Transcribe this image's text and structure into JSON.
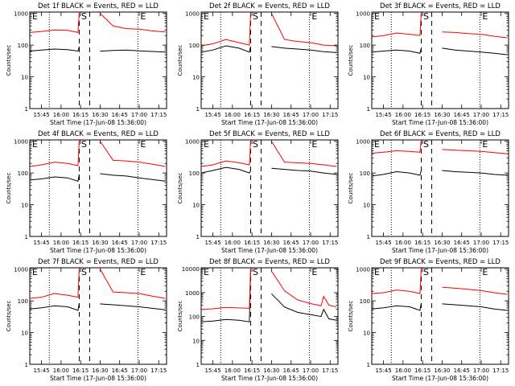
{
  "chart_data": [
    {
      "type": "line",
      "title": "Det 1f BLACK = Events, RED = LLD",
      "xlabel": "Start Time (17-Jun-08 15:36:00)",
      "ylabel": "Counts/sec",
      "x_ticks": [
        "15:45",
        "16:00",
        "16:15",
        "16:30",
        "16:45",
        "17:00",
        "17:15"
      ],
      "y_ticks": [
        "1",
        "10",
        "100",
        "1000"
      ],
      "ylim": [
        1,
        1100
      ],
      "yscale": "log",
      "markers": [
        "E",
        "S",
        "E"
      ],
      "series": [
        {
          "name": "Events",
          "color": "#000000",
          "x": [
            "15:36",
            "15:45",
            "15:55",
            "16:05",
            "16:13",
            "16:14",
            "16:22",
            "16:30",
            "16:40",
            "16:50",
            "17:00",
            "17:10",
            "17:20"
          ],
          "y": [
            65,
            70,
            75,
            72,
            65,
            90,
            null,
            64,
            68,
            70,
            66,
            63,
            60
          ]
        },
        {
          "name": "LLD",
          "color": "#ff0000",
          "x": [
            "15:36",
            "15:45",
            "15:55",
            "16:05",
            "16:13",
            "16:14",
            "16:22",
            "16:30",
            "16:40",
            "16:50",
            "17:00",
            "17:10",
            "17:20"
          ],
          "y": [
            250,
            270,
            300,
            290,
            250,
            1100,
            null,
            1000,
            400,
            330,
            320,
            280,
            260
          ]
        }
      ]
    },
    {
      "type": "line",
      "title": "Det 2f BLACK = Events, RED = LLD",
      "xlabel": "Start Time (17-Jun-08 15:36:00)",
      "ylabel": "Counts/sec",
      "x_ticks": [
        "15:45",
        "16:00",
        "16:15",
        "16:30",
        "16:45",
        "17:00",
        "17:15"
      ],
      "y_ticks": [
        "1",
        "10",
        "100",
        "1000"
      ],
      "ylim": [
        1,
        1100
      ],
      "yscale": "log",
      "markers": [
        "E",
        "S",
        "E"
      ],
      "series": [
        {
          "name": "Events",
          "color": "#000000",
          "x": [
            "15:36",
            "15:45",
            "15:55",
            "16:05",
            "16:13",
            "16:14",
            "16:22",
            "16:30",
            "16:40",
            "16:50",
            "17:00",
            "17:10",
            "17:20"
          ],
          "y": [
            60,
            70,
            95,
            80,
            60,
            90,
            null,
            90,
            80,
            75,
            70,
            62,
            58
          ]
        },
        {
          "name": "LLD",
          "color": "#ff0000",
          "x": [
            "15:36",
            "15:45",
            "15:55",
            "16:05",
            "16:13",
            "16:14",
            "16:22",
            "16:30",
            "16:40",
            "16:50",
            "17:00",
            "17:10",
            "17:20"
          ],
          "y": [
            95,
            110,
            150,
            120,
            100,
            1100,
            null,
            1000,
            150,
            130,
            120,
            100,
            95
          ]
        }
      ]
    },
    {
      "type": "line",
      "title": "Det 3f BLACK = Events, RED = LLD",
      "xlabel": "Start Time (17-Jun-08 15:36:00)",
      "ylabel": "Counts/sec",
      "x_ticks": [
        "15:45",
        "16:00",
        "16:15",
        "16:30",
        "16:45",
        "17:00",
        "17:15"
      ],
      "y_ticks": [
        "1",
        "10",
        "100",
        "1000"
      ],
      "ylim": [
        1,
        1100
      ],
      "yscale": "log",
      "markers": [
        "E",
        "S",
        "E"
      ],
      "series": [
        {
          "name": "Events",
          "color": "#000000",
          "x": [
            "15:36",
            "15:45",
            "15:55",
            "16:05",
            "16:13",
            "16:14",
            "16:22",
            "16:30",
            "16:40",
            "16:50",
            "17:00",
            "17:10",
            "17:20"
          ],
          "y": [
            60,
            65,
            70,
            65,
            55,
            80,
            null,
            80,
            70,
            65,
            60,
            55,
            50
          ]
        },
        {
          "name": "LLD",
          "color": "#ff0000",
          "x": [
            "15:36",
            "15:45",
            "15:55",
            "16:05",
            "16:13",
            "16:14",
            "16:22",
            "16:30",
            "16:40",
            "16:50",
            "17:00",
            "17:10",
            "17:20"
          ],
          "y": [
            180,
            200,
            240,
            220,
            200,
            1100,
            null,
            260,
            250,
            230,
            220,
            190,
            170
          ]
        }
      ]
    },
    {
      "type": "line",
      "title": "Det 4f BLACK = Events, RED = LLD",
      "xlabel": "Start Time (17-Jun-08 15:36:00)",
      "ylabel": "Counts/sec",
      "x_ticks": [
        "15:45",
        "16:00",
        "16:15",
        "16:30",
        "16:45",
        "17:00",
        "17:15"
      ],
      "y_ticks": [
        "1",
        "10",
        "100",
        "1000"
      ],
      "ylim": [
        1,
        1100
      ],
      "yscale": "log",
      "markers": [
        "E",
        "S",
        "E"
      ],
      "series": [
        {
          "name": "Events",
          "color": "#000000",
          "x": [
            "15:36",
            "15:45",
            "15:55",
            "16:05",
            "16:13",
            "16:14",
            "16:22",
            "16:30",
            "16:40",
            "16:50",
            "17:00",
            "17:10",
            "17:20"
          ],
          "y": [
            60,
            65,
            75,
            70,
            55,
            90,
            null,
            95,
            85,
            80,
            70,
            62,
            55
          ]
        },
        {
          "name": "LLD",
          "color": "#ff0000",
          "x": [
            "15:36",
            "15:45",
            "15:55",
            "16:05",
            "16:13",
            "16:14",
            "16:22",
            "16:30",
            "16:40",
            "16:50",
            "17:00",
            "17:10",
            "17:20"
          ],
          "y": [
            160,
            180,
            220,
            200,
            170,
            1100,
            null,
            1000,
            250,
            240,
            220,
            190,
            160
          ]
        }
      ]
    },
    {
      "type": "line",
      "title": "Det 5f BLACK = Events, RED = LLD",
      "xlabel": "Start Time (17-Jun-08 15:36:00)",
      "ylabel": "Counts/sec",
      "x_ticks": [
        "15:45",
        "16:00",
        "16:15",
        "16:30",
        "16:45",
        "17:00",
        "17:15"
      ],
      "y_ticks": [
        "1",
        "10",
        "100",
        "1000"
      ],
      "ylim": [
        1,
        1100
      ],
      "yscale": "log",
      "markers": [
        "E",
        "S",
        "E"
      ],
      "series": [
        {
          "name": "Events",
          "color": "#000000",
          "x": [
            "15:36",
            "15:45",
            "15:55",
            "16:05",
            "16:13",
            "16:14",
            "16:22",
            "16:30",
            "16:40",
            "16:50",
            "17:00",
            "17:10",
            "17:20"
          ],
          "y": [
            100,
            120,
            150,
            130,
            100,
            120,
            null,
            140,
            130,
            120,
            115,
            100,
            90
          ]
        },
        {
          "name": "LLD",
          "color": "#ff0000",
          "x": [
            "15:36",
            "15:45",
            "15:55",
            "16:05",
            "16:13",
            "16:14",
            "16:22",
            "16:30",
            "16:40",
            "16:50",
            "17:00",
            "17:10",
            "17:20"
          ],
          "y": [
            160,
            180,
            240,
            210,
            180,
            1100,
            null,
            1000,
            220,
            210,
            200,
            180,
            160
          ]
        }
      ]
    },
    {
      "type": "line",
      "title": "Det 6f BLACK = Events, RED = LLD",
      "xlabel": "Start Time (17-Jun-08 15:36:00)",
      "ylabel": "Counts/sec",
      "x_ticks": [
        "15:45",
        "16:00",
        "16:15",
        "16:30",
        "16:45",
        "17:00",
        "17:15"
      ],
      "y_ticks": [
        "1",
        "10",
        "100",
        "1000"
      ],
      "ylim": [
        1,
        1100
      ],
      "yscale": "log",
      "markers": [
        "E",
        "S",
        "E"
      ],
      "series": [
        {
          "name": "Events",
          "color": "#000000",
          "x": [
            "15:36",
            "15:45",
            "15:55",
            "16:05",
            "16:13",
            "16:14",
            "16:22",
            "16:30",
            "16:40",
            "16:50",
            "17:00",
            "17:10",
            "17:20"
          ],
          "y": [
            80,
            90,
            110,
            100,
            85,
            120,
            null,
            120,
            110,
            105,
            100,
            90,
            85
          ]
        },
        {
          "name": "LLD",
          "color": "#ff0000",
          "x": [
            "15:36",
            "15:45",
            "15:55",
            "16:05",
            "16:13",
            "16:14",
            "16:22",
            "16:30",
            "16:40",
            "16:50",
            "17:00",
            "17:10",
            "17:20"
          ],
          "y": [
            420,
            450,
            500,
            480,
            450,
            1100,
            null,
            550,
            520,
            500,
            480,
            440,
            400
          ]
        }
      ]
    },
    {
      "type": "line",
      "title": "Det 7f BLACK = Events, RED = LLD",
      "xlabel": "Start Time (17-Jun-08 15:36:00)",
      "ylabel": "Counts/sec",
      "x_ticks": [
        "15:45",
        "16:00",
        "16:15",
        "16:30",
        "16:45",
        "17:00",
        "17:15"
      ],
      "y_ticks": [
        "1",
        "10",
        "100",
        "1000"
      ],
      "ylim": [
        1,
        1100
      ],
      "yscale": "log",
      "markers": [
        "E",
        "S",
        "E"
      ],
      "series": [
        {
          "name": "Events",
          "color": "#000000",
          "x": [
            "15:36",
            "15:45",
            "15:55",
            "16:05",
            "16:13",
            "16:14",
            "16:22",
            "16:30",
            "16:40",
            "16:50",
            "17:00",
            "17:10",
            "17:20"
          ],
          "y": [
            55,
            60,
            70,
            65,
            50,
            85,
            null,
            80,
            75,
            70,
            65,
            58,
            52
          ]
        },
        {
          "name": "LLD",
          "color": "#ff0000",
          "x": [
            "15:36",
            "15:45",
            "15:55",
            "16:05",
            "16:13",
            "16:14",
            "16:22",
            "16:30",
            "16:40",
            "16:50",
            "17:00",
            "17:10",
            "17:20"
          ],
          "y": [
            120,
            130,
            170,
            150,
            130,
            1100,
            null,
            1000,
            190,
            180,
            170,
            140,
            120
          ]
        }
      ]
    },
    {
      "type": "line",
      "title": "Det 8f BLACK = Events, RED = LLD",
      "xlabel": "Start Time (17-Jun-08 15:36:00)",
      "ylabel": "Counts/sec",
      "x_ticks": [
        "15:45",
        "16:00",
        "16:15",
        "16:30",
        "16:45",
        "17:00",
        "17:15"
      ],
      "y_ticks": [
        "1",
        "10",
        "100",
        "1000",
        "10000"
      ],
      "ylim": [
        1,
        11000
      ],
      "yscale": "log",
      "markers": [
        "E",
        "S",
        "E"
      ],
      "series": [
        {
          "name": "Events",
          "color": "#000000",
          "x": [
            "15:36",
            "15:45",
            "15:55",
            "16:05",
            "16:13",
            "16:14",
            "16:22",
            "16:30",
            "16:40",
            "16:50",
            "17:00",
            "17:08",
            "17:10",
            "17:14",
            "17:20"
          ],
          "y": [
            60,
            65,
            75,
            70,
            60,
            11000,
            null,
            900,
            250,
            150,
            120,
            100,
            200,
            80,
            70
          ]
        },
        {
          "name": "LLD",
          "color": "#ff0000",
          "x": [
            "15:36",
            "15:45",
            "15:55",
            "16:05",
            "16:13",
            "16:14",
            "16:22",
            "16:30",
            "16:40",
            "16:50",
            "17:00",
            "17:08",
            "17:10",
            "17:14",
            "17:20"
          ],
          "y": [
            200,
            210,
            240,
            230,
            220,
            11000,
            null,
            8000,
            1200,
            500,
            350,
            280,
            700,
            300,
            250
          ]
        }
      ]
    },
    {
      "type": "line",
      "title": "Det 9f BLACK = Events, RED = LLD",
      "xlabel": "Start Time (17-Jun-08 15:36:00)",
      "ylabel": "Counts/sec",
      "x_ticks": [
        "15:45",
        "16:00",
        "16:15",
        "16:30",
        "16:45",
        "17:00",
        "17:15"
      ],
      "y_ticks": [
        "1",
        "10",
        "100",
        "1000"
      ],
      "ylim": [
        1,
        1100
      ],
      "yscale": "log",
      "markers": [
        "E",
        "S",
        "E"
      ],
      "series": [
        {
          "name": "Events",
          "color": "#000000",
          "x": [
            "15:36",
            "15:45",
            "15:55",
            "16:05",
            "16:13",
            "16:14",
            "16:22",
            "16:30",
            "16:40",
            "16:50",
            "17:00",
            "17:10",
            "17:20"
          ],
          "y": [
            55,
            60,
            70,
            65,
            50,
            85,
            null,
            80,
            75,
            70,
            65,
            55,
            50
          ]
        },
        {
          "name": "LLD",
          "color": "#ff0000",
          "x": [
            "15:36",
            "15:45",
            "15:55",
            "16:05",
            "16:13",
            "16:14",
            "16:22",
            "16:30",
            "16:40",
            "16:50",
            "17:00",
            "17:10",
            "17:20"
          ],
          "y": [
            170,
            180,
            220,
            200,
            170,
            1100,
            null,
            270,
            250,
            230,
            210,
            180,
            160
          ]
        }
      ]
    }
  ]
}
